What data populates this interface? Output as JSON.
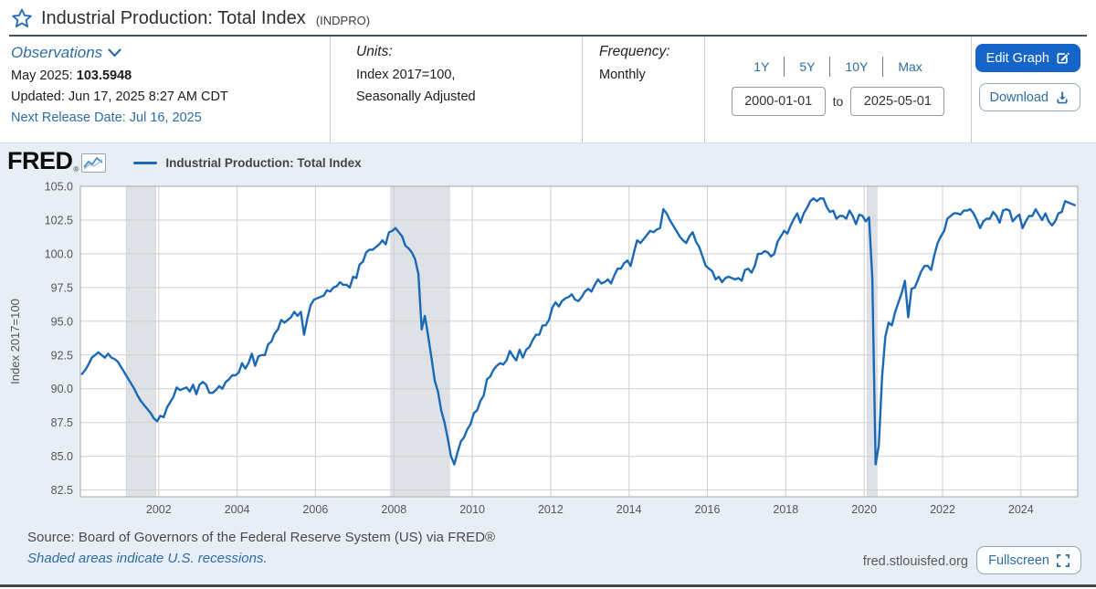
{
  "theme": {
    "link_blue": "#2e6da3",
    "button_blue": "#1565c8",
    "line_blue": "#1b69b5",
    "chart_bg": "#e8eef5"
  },
  "header": {
    "title": "Industrial Production: Total Index",
    "series_id": "(INDPRO)",
    "observations": {
      "label": "Observations",
      "latest_period": "May 2025: ",
      "latest_value": "103.5948",
      "updated": "Updated: Jun 17, 2025 8:27 AM CDT",
      "next_release": "Next Release Date: Jul 16, 2025"
    },
    "units": {
      "label": "Units:",
      "line1": "Index 2017=100,",
      "line2": "Seasonally Adjusted"
    },
    "frequency": {
      "label": "Frequency:",
      "value": "Monthly"
    },
    "range_buttons": [
      "1Y",
      "5Y",
      "10Y",
      "Max"
    ],
    "date_range": {
      "start": "2000-01-01",
      "separator": "to",
      "end": "2025-05-01"
    },
    "actions": {
      "edit_graph": "Edit Graph",
      "download": "Download"
    }
  },
  "chart": {
    "logo": "FRED",
    "logo_mark": "®",
    "legend": "Industrial Production: Total Index",
    "footer": {
      "source": "Source: Board of Governors of the Federal Reserve System (US) via FRED®",
      "recession_note": "Shaded areas indicate U.S. recessions.",
      "site": "fred.stlouisfed.org",
      "fullscreen": "Fullscreen"
    }
  },
  "chart_data": {
    "type": "line",
    "title": "Industrial Production: Total Index",
    "ylabel": "Index 2017=100",
    "frequency": "monthly",
    "x_start": "2000-01",
    "x_end": "2025-05",
    "ylim": [
      82.0,
      105.0
    ],
    "yticks": [
      82.5,
      85.0,
      87.5,
      90.0,
      92.5,
      95.0,
      97.5,
      100.0,
      102.5,
      105.0
    ],
    "xticks": [
      2002,
      2004,
      2006,
      2008,
      2010,
      2012,
      2014,
      2016,
      2018,
      2020,
      2022,
      2024
    ],
    "grid": true,
    "legend_position": "top-left",
    "line_color": "#1b69b5",
    "recession_color": "#dee2e7",
    "recessions": [
      [
        2001.17,
        2001.92
      ],
      [
        2007.92,
        2009.42
      ],
      [
        2020.08,
        2020.33
      ]
    ],
    "values": [
      91.1,
      91.4,
      91.8,
      92.3,
      92.5,
      92.7,
      92.5,
      92.3,
      92.6,
      92.3,
      92.2,
      92.0,
      91.6,
      91.2,
      90.8,
      90.4,
      90.0,
      89.5,
      89.1,
      88.8,
      88.5,
      88.2,
      87.8,
      87.6,
      88.0,
      87.9,
      88.6,
      89.0,
      89.4,
      90.1,
      89.9,
      90.0,
      90.1,
      89.8,
      90.3,
      89.6,
      90.3,
      90.5,
      90.3,
      89.7,
      89.7,
      89.9,
      90.2,
      90.0,
      90.5,
      90.7,
      91.0,
      91.0,
      91.2,
      91.9,
      91.5,
      91.9,
      92.6,
      91.7,
      92.4,
      92.5,
      92.5,
      93.3,
      93.5,
      94.1,
      94.4,
      95.1,
      94.9,
      95.1,
      95.3,
      95.7,
      95.4,
      95.7,
      94.0,
      95.2,
      96.2,
      96.6,
      96.7,
      96.8,
      96.9,
      97.3,
      97.2,
      97.5,
      97.6,
      97.9,
      97.7,
      97.7,
      97.5,
      98.3,
      98.2,
      99.2,
      99.4,
      100.1,
      100.3,
      100.3,
      100.5,
      100.7,
      101.0,
      100.7,
      101.6,
      101.7,
      101.9,
      101.6,
      101.3,
      100.6,
      100.4,
      100.1,
      99.6,
      98.5,
      94.4,
      95.4,
      93.9,
      92.3,
      90.6,
      89.8,
      88.4,
      87.5,
      86.3,
      85.0,
      84.4,
      85.3,
      86.1,
      86.4,
      87.0,
      87.4,
      88.2,
      88.4,
      89.1,
      89.5,
      90.7,
      90.9,
      91.4,
      91.7,
      91.9,
      91.8,
      92.1,
      92.8,
      92.4,
      92.1,
      92.9,
      92.3,
      92.9,
      93.1,
      93.6,
      94.0,
      94.0,
      94.7,
      94.7,
      95.1,
      96.0,
      96.4,
      96.1,
      96.5,
      96.7,
      96.8,
      97.0,
      96.6,
      96.5,
      96.8,
      97.2,
      97.4,
      97.2,
      97.7,
      98.1,
      97.8,
      97.9,
      98.1,
      97.8,
      98.4,
      98.9,
      98.9,
      99.3,
      99.5,
      99.1,
      100.1,
      101.0,
      100.8,
      101.1,
      101.4,
      101.7,
      101.6,
      101.8,
      101.9,
      103.3,
      103.0,
      102.5,
      102.1,
      101.7,
      101.3,
      101.0,
      100.8,
      101.3,
      101.6,
      100.9,
      100.5,
      99.8,
      99.1,
      98.9,
      98.7,
      98.1,
      98.3,
      97.9,
      98.2,
      98.3,
      98.2,
      98.1,
      98.2,
      98.0,
      98.8,
      98.9,
      98.6,
      99.1,
      100.0,
      100.0,
      100.2,
      100.1,
      99.8,
      100.0,
      100.9,
      101.3,
      101.7,
      101.5,
      102.1,
      102.6,
      103.0,
      102.3,
      103.0,
      103.4,
      103.9,
      104.1,
      103.9,
      104.1,
      104.1,
      103.5,
      103.1,
      103.2,
      102.6,
      102.8,
      102.8,
      102.6,
      103.2,
      102.8,
      102.2,
      102.9,
      102.8,
      102.4,
      102.7,
      98.2,
      84.4,
      85.8,
      90.9,
      93.9,
      94.9,
      94.7,
      95.7,
      96.4,
      97.1,
      98.0,
      95.3,
      97.4,
      97.5,
      98.1,
      98.7,
      99.1,
      99.1,
      98.8,
      99.9,
      100.8,
      101.3,
      101.7,
      102.6,
      102.8,
      103.0,
      103.0,
      102.9,
      103.2,
      103.2,
      103.3,
      103.0,
      102.5,
      101.9,
      102.4,
      102.6,
      102.6,
      103.1,
      102.8,
      102.3,
      103.2,
      103.3,
      103.2,
      102.4,
      102.7,
      102.9,
      101.9,
      102.4,
      102.8,
      102.8,
      103.3,
      102.9,
      102.5,
      103.0,
      102.4,
      102.1,
      102.4,
      103.0,
      103.1,
      103.9,
      103.8,
      103.7,
      103.6
    ]
  }
}
